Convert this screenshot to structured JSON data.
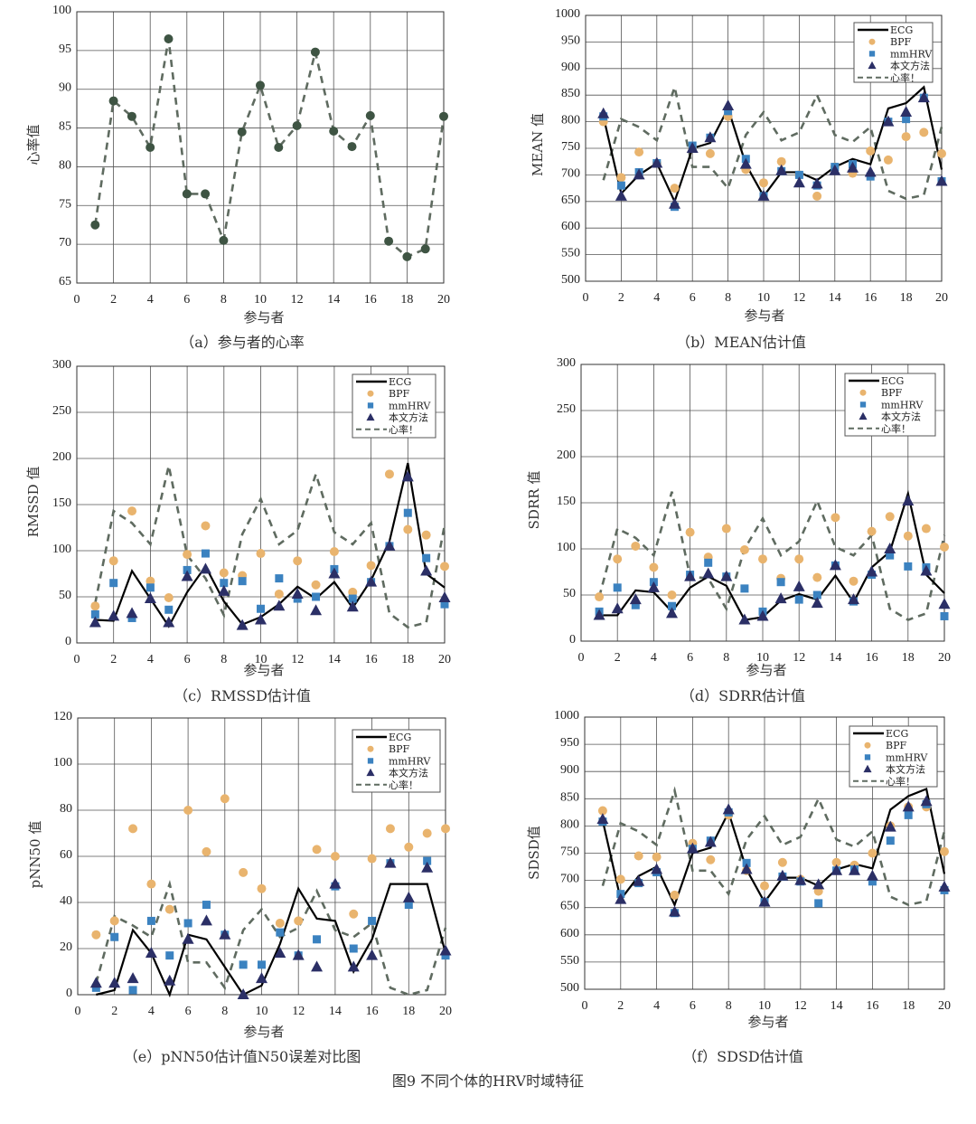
{
  "figure_caption": "图9    不同个体的HRV时域特征",
  "colors": {
    "ECG": "#000000",
    "BPF": "#e9b46e",
    "mmHRV": "#3b82c0",
    "ours": "#2b2f66",
    "hr_dashed": "#5f6b60",
    "hr_points": "#3e5443",
    "grid": "#555555"
  },
  "chart_data": [
    {
      "type": "line",
      "caption": "（a）参与者的心率",
      "xlabel": "参与者",
      "ylabel": "心率值",
      "xlim": [
        0,
        20
      ],
      "ylim": [
        65,
        100
      ],
      "xticks": [
        0,
        2,
        4,
        6,
        8,
        10,
        12,
        14,
        16,
        18,
        20
      ],
      "yticks": [
        65,
        70,
        75,
        80,
        85,
        90,
        95,
        100
      ],
      "grid": true,
      "legend": [],
      "x": [
        1,
        2,
        3,
        4,
        5,
        6,
        7,
        8,
        9,
        10,
        11,
        12,
        13,
        14,
        15,
        16,
        17,
        18,
        19,
        20
      ],
      "series": [
        {
          "style": "dashed-dots",
          "values": [
            72.5,
            88.5,
            86.5,
            82.5,
            96.5,
            76.5,
            76.5,
            70.5,
            84.5,
            90.5,
            82.5,
            85.3,
            94.8,
            84.6,
            82.6,
            86.6,
            70.4,
            68.4,
            69.4,
            86.5
          ]
        }
      ]
    },
    {
      "type": "line",
      "caption": "（b）MEAN估计值",
      "xlabel": "参与者",
      "ylabel": "MEAN 值",
      "xlim": [
        0,
        20
      ],
      "ylim": [
        500,
        1000
      ],
      "xticks": [
        0,
        2,
        4,
        6,
        8,
        10,
        12,
        14,
        16,
        18,
        20
      ],
      "yticks": [
        500,
        550,
        600,
        650,
        700,
        750,
        800,
        850,
        900,
        950,
        1000
      ],
      "grid": true,
      "legend_position": "top-right",
      "legend": [
        "ECG",
        "BPF",
        "mmHRV",
        "本文方法",
        "心率！"
      ],
      "x": [
        1,
        2,
        3,
        4,
        5,
        6,
        7,
        8,
        9,
        10,
        11,
        12,
        13,
        14,
        15,
        16,
        17,
        18,
        19,
        20
      ],
      "series": [
        {
          "name": "ECG",
          "style": "line",
          "values": [
            810,
            665,
            700,
            722,
            650,
            750,
            760,
            825,
            720,
            660,
            705,
            705,
            690,
            715,
            730,
            720,
            825,
            835,
            865,
            710
          ]
        },
        {
          "name": "BPF",
          "style": "circle",
          "values": [
            800,
            695,
            743,
            722,
            675,
            750,
            740,
            810,
            710,
            685,
            725,
            700,
            660,
            715,
            703,
            745,
            728,
            772,
            780,
            740
          ]
        },
        {
          "name": "mmHRV",
          "style": "square",
          "values": [
            810,
            680,
            705,
            722,
            640,
            755,
            770,
            820,
            730,
            660,
            707,
            700,
            680,
            715,
            720,
            697,
            800,
            805,
            845,
            688
          ]
        },
        {
          "name": "本文方法",
          "style": "triangle",
          "values": [
            815,
            660,
            700,
            722,
            645,
            750,
            770,
            830,
            720,
            660,
            708,
            685,
            683,
            708,
            713,
            705,
            800,
            818,
            845,
            688
          ]
        },
        {
          "name": "心率！",
          "style": "dashed",
          "values": [
            690,
            805,
            790,
            765,
            865,
            715,
            715,
            675,
            775,
            818,
            765,
            780,
            850,
            775,
            762,
            790,
            670,
            655,
            662,
            790
          ]
        }
      ]
    },
    {
      "type": "line",
      "caption": "（c）RMSSD估计值",
      "xlabel": "参与者",
      "ylabel": "RMSSD 值",
      "xlim": [
        0,
        20
      ],
      "ylim": [
        0,
        300
      ],
      "xticks": [
        0,
        2,
        4,
        6,
        8,
        10,
        12,
        14,
        16,
        18,
        20
      ],
      "yticks": [
        0,
        50,
        100,
        150,
        200,
        250,
        300
      ],
      "grid": true,
      "legend_position": "top-right",
      "legend": [
        "ECG",
        "BPF",
        "mmHRV",
        "本文方法",
        "心率！"
      ],
      "x": [
        1,
        2,
        3,
        4,
        5,
        6,
        7,
        8,
        9,
        10,
        11,
        12,
        13,
        14,
        15,
        16,
        17,
        18,
        19,
        20
      ],
      "series": [
        {
          "name": "ECG",
          "style": "line",
          "values": [
            25,
            24,
            78,
            48,
            18,
            55,
            83,
            45,
            20,
            28,
            42,
            61,
            48,
            66,
            38,
            68,
            110,
            195,
            75,
            60
          ]
        },
        {
          "name": "BPF",
          "style": "circle",
          "values": [
            40,
            89,
            143,
            67,
            49,
            96,
            127,
            76,
            73,
            97,
            53,
            89,
            63,
            99,
            55,
            84,
            183,
            123,
            117,
            83
          ]
        },
        {
          "name": "mmHRV",
          "style": "square",
          "values": [
            31,
            65,
            27,
            60,
            36,
            79,
            97,
            65,
            67,
            37,
            70,
            48,
            50,
            80,
            48,
            66,
            105,
            141,
            92,
            42
          ]
        },
        {
          "name": "本文方法",
          "style": "triangle",
          "values": [
            22,
            29,
            32,
            48,
            22,
            72,
            80,
            56,
            19,
            25,
            40,
            53,
            35,
            75,
            39,
            66,
            105,
            180,
            78,
            49
          ]
        },
        {
          "name": "心率！",
          "style": "dashed",
          "values": [
            43,
            143,
            130,
            107,
            192,
            95,
            70,
            30,
            118,
            156,
            107,
            122,
            183,
            120,
            107,
            130,
            32,
            17,
            22,
            128
          ]
        }
      ]
    },
    {
      "type": "line",
      "caption": "（d）SDRR估计值",
      "xlabel": "参与者",
      "ylabel": "SDRR 值",
      "xlim": [
        0,
        20
      ],
      "ylim": [
        0,
        300
      ],
      "xticks": [
        0,
        2,
        4,
        6,
        8,
        10,
        12,
        14,
        16,
        18,
        20
      ],
      "yticks": [
        0,
        50,
        100,
        150,
        200,
        250,
        300
      ],
      "grid": true,
      "legend_position": "top-right",
      "legend": [
        "ECG",
        "BPF",
        "mmHRV",
        "本文方法",
        "心率！"
      ],
      "x": [
        1,
        2,
        3,
        4,
        5,
        6,
        7,
        8,
        9,
        10,
        11,
        12,
        13,
        14,
        15,
        16,
        17,
        18,
        19,
        20
      ],
      "series": [
        {
          "name": "ECG",
          "style": "line",
          "values": [
            28,
            28,
            55,
            53,
            32,
            58,
            70,
            60,
            23,
            26,
            44,
            51,
            45,
            71,
            42,
            80,
            97,
            160,
            72,
            52
          ]
        },
        {
          "name": "BPF",
          "style": "circle",
          "values": [
            48,
            89,
            103,
            80,
            50,
            118,
            91,
            122,
            99,
            89,
            68,
            89,
            69,
            134,
            65,
            119,
            135,
            114,
            122,
            102
          ]
        },
        {
          "name": "mmHRV",
          "style": "square",
          "values": [
            32,
            58,
            39,
            64,
            38,
            72,
            85,
            70,
            57,
            32,
            64,
            45,
            50,
            82,
            43,
            72,
            93,
            81,
            80,
            27
          ]
        },
        {
          "name": "本文方法",
          "style": "triangle",
          "values": [
            28,
            35,
            45,
            58,
            30,
            70,
            73,
            70,
            23,
            27,
            46,
            59,
            41,
            82,
            45,
            75,
            100,
            152,
            76,
            40
          ]
        },
        {
          "name": "心率！",
          "style": "dashed",
          "values": [
            48,
            122,
            112,
            93,
            162,
            70,
            68,
            35,
            100,
            133,
            93,
            108,
            152,
            102,
            93,
            115,
            35,
            23,
            30,
            115
          ]
        }
      ]
    },
    {
      "type": "line",
      "caption": "（e）pNN50估计值N50误差对比图",
      "xlabel": "参与者",
      "ylabel": "pNN50 值",
      "xlim": [
        0,
        20
      ],
      "ylim": [
        0,
        120
      ],
      "xticks": [
        0,
        2,
        4,
        6,
        8,
        10,
        12,
        14,
        16,
        18,
        20
      ],
      "yticks": [
        0,
        20,
        40,
        60,
        80,
        100,
        120
      ],
      "grid": true,
      "legend_position": "top-right",
      "legend": [
        "ECG",
        "BPF",
        "mmHRV",
        "本文方法",
        "心率！"
      ],
      "x": [
        1,
        2,
        3,
        4,
        5,
        6,
        7,
        8,
        9,
        10,
        11,
        12,
        13,
        14,
        15,
        16,
        17,
        18,
        19,
        20
      ],
      "series": [
        {
          "name": "ECG",
          "style": "line",
          "values": [
            0,
            2,
            28,
            18,
            0,
            26,
            24,
            12,
            0,
            4,
            22,
            46,
            33,
            32,
            10,
            24,
            48,
            48,
            48,
            18
          ]
        },
        {
          "name": "BPF",
          "style": "circle",
          "values": [
            26,
            32,
            72,
            48,
            37,
            80,
            62,
            85,
            53,
            46,
            31,
            32,
            63,
            60,
            35,
            59,
            72,
            64,
            70,
            72
          ]
        },
        {
          "name": "mmHRV",
          "style": "square",
          "values": [
            3,
            25,
            2,
            32,
            17,
            31,
            39,
            26,
            13,
            13,
            27,
            17,
            24,
            47,
            20,
            32,
            57,
            39,
            58,
            17
          ]
        },
        {
          "name": "本文方法",
          "style": "triangle",
          "values": [
            5,
            5,
            7,
            18,
            6,
            24,
            32,
            26,
            0,
            7,
            18,
            17,
            12,
            48,
            12,
            17,
            57,
            42,
            55,
            19
          ]
        },
        {
          "name": "心率！",
          "style": "dashed",
          "values": [
            5,
            34,
            30,
            25,
            48,
            14,
            14,
            3,
            28,
            37,
            25,
            29,
            45,
            28,
            25,
            31,
            3,
            0,
            2,
            29
          ]
        }
      ]
    },
    {
      "type": "line",
      "caption": "（f）SDSD估计值",
      "xlabel": "参与者",
      "ylabel": "SDSD值",
      "xlim": [
        0,
        20
      ],
      "ylim": [
        500,
        1000
      ],
      "xticks": [
        0,
        2,
        4,
        6,
        8,
        10,
        12,
        14,
        16,
        18,
        20
      ],
      "yticks": [
        500,
        550,
        600,
        650,
        700,
        750,
        800,
        850,
        900,
        950,
        1000
      ],
      "grid": true,
      "legend_position": "top-right",
      "legend": [
        "ECG",
        "BPF",
        "mmHRV",
        "本文方法",
        "心率！"
      ],
      "x": [
        1,
        2,
        3,
        4,
        5,
        6,
        7,
        8,
        9,
        10,
        11,
        12,
        13,
        14,
        15,
        16,
        17,
        18,
        19,
        20
      ],
      "series": [
        {
          "name": "ECG",
          "style": "line",
          "values": [
            810,
            665,
            708,
            725,
            655,
            750,
            760,
            825,
            720,
            660,
            705,
            705,
            690,
            720,
            730,
            722,
            830,
            855,
            868,
            712
          ]
        },
        {
          "name": "BPF",
          "style": "circle",
          "values": [
            828,
            702,
            745,
            743,
            673,
            768,
            738,
            820,
            718,
            690,
            733,
            702,
            680,
            733,
            728,
            750,
            800,
            835,
            835,
            753
          ]
        },
        {
          "name": "mmHRV",
          "style": "square",
          "values": [
            808,
            675,
            695,
            715,
            640,
            758,
            773,
            825,
            732,
            660,
            707,
            698,
            658,
            718,
            720,
            698,
            773,
            820,
            840,
            682
          ]
        },
        {
          "name": "本文方法",
          "style": "triangle",
          "values": [
            812,
            665,
            698,
            720,
            642,
            758,
            770,
            830,
            720,
            660,
            708,
            700,
            692,
            718,
            718,
            708,
            798,
            835,
            845,
            688
          ]
        },
        {
          "name": "心率！",
          "style": "dashed",
          "values": [
            690,
            805,
            790,
            765,
            865,
            718,
            718,
            675,
            775,
            818,
            765,
            780,
            850,
            775,
            762,
            790,
            670,
            655,
            662,
            790
          ]
        }
      ]
    }
  ]
}
